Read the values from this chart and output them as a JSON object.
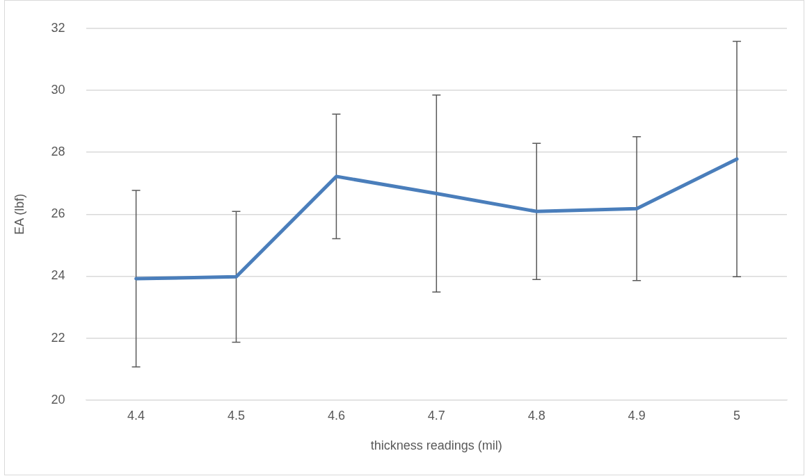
{
  "chart_data": {
    "type": "line",
    "xlabel": "thickness readings (mil)",
    "ylabel": "EA (lbf)",
    "categories": [
      "4.4",
      "4.5",
      "4.6",
      "4.7",
      "4.8",
      "4.9",
      "5"
    ],
    "series": [
      {
        "color": "#4a7ebb",
        "values": [
          23.92,
          23.98,
          27.22,
          26.67,
          26.09,
          26.18,
          27.78
        ],
        "errors": [
          2.85,
          2.11,
          2.01,
          3.18,
          2.2,
          2.32,
          3.8
        ]
      }
    ],
    "ylim": [
      20,
      32
    ],
    "yticks": [
      20,
      22,
      24,
      26,
      28,
      30,
      32
    ],
    "grid": "y",
    "legend": false,
    "marker": "none",
    "line_style": "solid"
  }
}
